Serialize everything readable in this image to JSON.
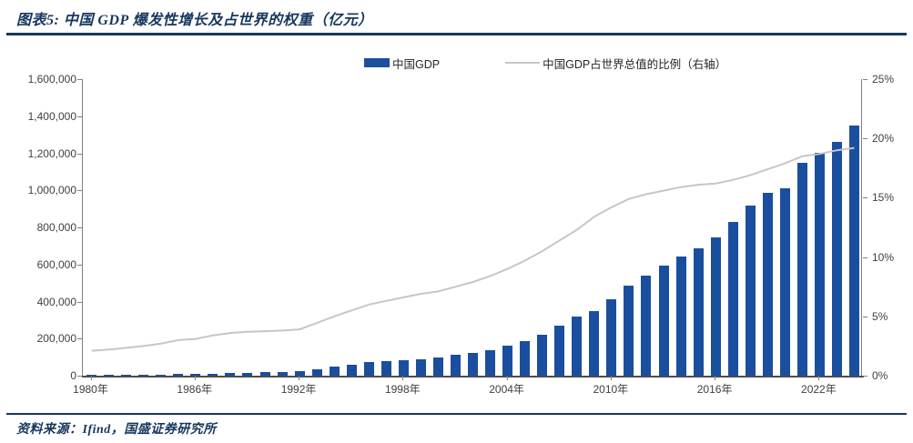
{
  "header": {
    "title": "图表5:  中国 GDP 爆发性增长及占世界的权重（亿元）"
  },
  "footer": {
    "source": "资料来源：Ifind，国盛证券研究所"
  },
  "colors": {
    "accent_navy": "#17375E",
    "bar_blue": "#1A4E9E",
    "line_gray": "#C6C6C6",
    "axis_gray": "#808080",
    "axis_dark": "#4D4D4D",
    "tick_text": "#404040",
    "legend_text": "#262626"
  },
  "chart_data": {
    "type": "bar",
    "combo": "bar+line, dual axis",
    "title": "图表5: 中国 GDP 爆发性增长及占世界的权重（亿元）",
    "grid": false,
    "legend_position": "top-center",
    "categories": [
      1980,
      1981,
      1982,
      1983,
      1984,
      1985,
      1986,
      1987,
      1988,
      1989,
      1990,
      1991,
      1992,
      1993,
      1994,
      1995,
      1996,
      1997,
      1998,
      1999,
      2000,
      2001,
      2002,
      2003,
      2004,
      2005,
      2006,
      2007,
      2008,
      2009,
      2010,
      2011,
      2012,
      2013,
      2014,
      2015,
      2016,
      2017,
      2018,
      2019,
      2020,
      2021,
      2022,
      2023,
      2024
    ],
    "series": [
      {
        "name": "中国GDP",
        "type": "bar",
        "axis": "left",
        "color": "#1A4E9E",
        "values": [
          4588,
          4936,
          5373,
          6021,
          7279,
          9099,
          10376,
          12175,
          15180,
          17179,
          18873,
          22006,
          27195,
          35674,
          48638,
          61340,
          71814,
          79715,
          85196,
          90564,
          100280,
          110863,
          121717,
          137422,
          161840,
          187319,
          219439,
          270092,
          319245,
          348518,
          412119,
          487940,
          538580,
          592963,
          643563,
          688858,
          746395,
          832036,
          919281,
          986515,
          1013567,
          1149237,
          1204724,
          1260582,
          1349084
        ]
      },
      {
        "name": "中国GDP占世界总值的比例（右轴）",
        "type": "line",
        "axis": "right",
        "color": "#C6C6C6",
        "values": [
          2.1,
          2.2,
          2.35,
          2.5,
          2.7,
          3.0,
          3.1,
          3.4,
          3.6,
          3.7,
          3.75,
          3.8,
          3.9,
          4.45,
          5.0,
          5.5,
          6.0,
          6.3,
          6.6,
          6.9,
          7.1,
          7.5,
          7.9,
          8.4,
          9.0,
          9.7,
          10.5,
          11.4,
          12.3,
          13.4,
          14.2,
          14.9,
          15.3,
          15.6,
          15.9,
          16.1,
          16.2,
          16.5,
          16.9,
          17.4,
          17.9,
          18.5,
          18.7,
          19.0,
          19.2
        ]
      }
    ],
    "left_axis": {
      "min": 0,
      "max": 1600000,
      "step": 200000,
      "tick_labels": [
        "0",
        "200,000",
        "400,000",
        "600,000",
        "800,000",
        "1,000,000",
        "1,200,000",
        "1,400,000",
        "1,600,000"
      ]
    },
    "right_axis": {
      "min": 0,
      "max": 25,
      "step": 5,
      "tick_labels": [
        "0%",
        "5%",
        "10%",
        "15%",
        "20%",
        "25%"
      ]
    },
    "x_tick_years": [
      1980,
      1986,
      1992,
      1998,
      2004,
      2010,
      2016,
      2022
    ],
    "x_tick_labels": [
      "1980年",
      "1986年",
      "1992年",
      "1998年",
      "2004年",
      "2010年",
      "2016年",
      "2022年"
    ]
  }
}
